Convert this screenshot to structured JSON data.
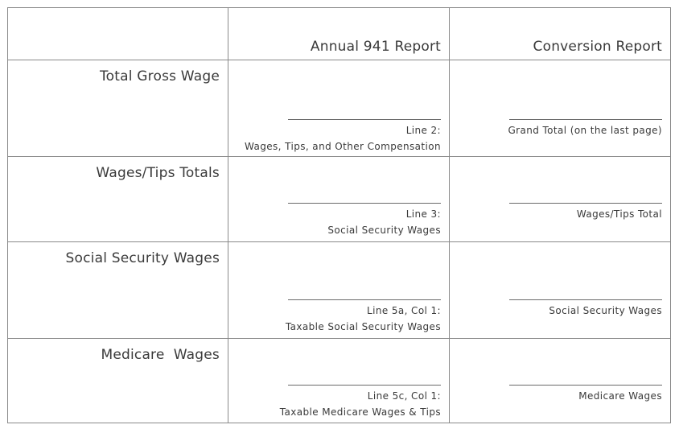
{
  "header": {
    "blank": "",
    "annual": "Annual 941 Report",
    "conversion": "Conversion Report"
  },
  "rows": [
    {
      "label": "Total Gross Wage",
      "annual": [
        "Line 2:",
        "Wages, Tips, and Other Compensation"
      ],
      "conversion": [
        "Grand Total (on the last page)"
      ]
    },
    {
      "label": "Wages/Tips Totals",
      "annual": [
        "Line 3:",
        "Social Security Wages"
      ],
      "conversion": [
        "Wages/Tips Total"
      ]
    },
    {
      "label": "Social Security Wages",
      "annual": [
        "Line 5a, Col 1:",
        "Taxable Social Security Wages"
      ],
      "conversion": [
        "Social Security Wages"
      ]
    },
    {
      "label": "Medicare  Wages",
      "annual": [
        "Line 5c, Col 1:",
        "Taxable Medicare Wages & Tips"
      ],
      "conversion": [
        "Medicare Wages"
      ]
    }
  ]
}
